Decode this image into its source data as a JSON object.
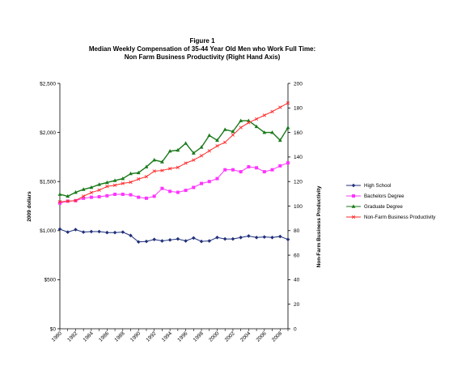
{
  "chart_data": {
    "type": "line",
    "title": [
      "Figure 1",
      "Median Weekly Compensation of 35-44 Year Old Men who Work Full Time:",
      "Non Farm Business Productivity (Right Hand Axis)"
    ],
    "ylabel": "2009 dollars",
    "y2label": "Non-Farm Business Productivity",
    "ylim": [
      0,
      2500
    ],
    "y2lim": [
      0,
      200
    ],
    "yticks": [
      "$0",
      "$500",
      "$1,000",
      "$1,500",
      "$2,000",
      "$2,500"
    ],
    "y2ticks": [
      "0",
      "20",
      "40",
      "60",
      "80",
      "100",
      "120",
      "140",
      "160",
      "180",
      "200"
    ],
    "xticks": [
      "1980",
      "1982",
      "1984",
      "1986",
      "1988",
      "1990",
      "1992",
      "1994",
      "1996",
      "1998",
      "2000",
      "2002",
      "2004",
      "2006",
      "2008"
    ],
    "x": [
      1980,
      1981,
      1982,
      1983,
      1984,
      1985,
      1986,
      1987,
      1988,
      1989,
      1990,
      1991,
      1992,
      1993,
      1994,
      1995,
      1996,
      1997,
      1998,
      1999,
      2000,
      2001,
      2002,
      2003,
      2004,
      2005,
      2006,
      2007,
      2008,
      2009
    ],
    "legend_position": "right",
    "series": [
      {
        "name": "High School",
        "axis": "left",
        "color": "#1f2f7a",
        "marker": "diamond",
        "values": [
          1015,
          985,
          1010,
          985,
          990,
          990,
          980,
          980,
          985,
          950,
          885,
          890,
          910,
          895,
          905,
          915,
          895,
          925,
          890,
          895,
          930,
          915,
          915,
          930,
          945,
          930,
          935,
          930,
          940,
          910
        ]
      },
      {
        "name": "Bachelors Degree",
        "axis": "left",
        "color": "#ff33ff",
        "marker": "square",
        "values": [
          1280,
          1300,
          1305,
          1330,
          1340,
          1345,
          1355,
          1370,
          1370,
          1365,
          1340,
          1330,
          1350,
          1430,
          1400,
          1390,
          1410,
          1440,
          1480,
          1500,
          1530,
          1620,
          1620,
          1600,
          1650,
          1640,
          1600,
          1620,
          1660,
          1690
        ]
      },
      {
        "name": "Graduate Degree",
        "axis": "left",
        "color": "#1a7a1a",
        "marker": "triangle",
        "values": [
          1370,
          1350,
          1390,
          1420,
          1440,
          1470,
          1490,
          1510,
          1530,
          1580,
          1590,
          1650,
          1720,
          1700,
          1810,
          1820,
          1890,
          1790,
          1850,
          1970,
          1920,
          2030,
          2010,
          2120,
          2120,
          2060,
          2000,
          2000,
          1920,
          2050
        ]
      },
      {
        "name": "Non-Farm Business Productivity",
        "axis": "right",
        "color": "#ff2a2a",
        "marker": "x",
        "values": [
          103.5,
          104.0,
          104.5,
          108,
          111,
          113,
          116,
          117,
          118.5,
          119.5,
          122,
          124,
          128.5,
          129,
          130.5,
          131.5,
          135,
          137.5,
          141,
          145,
          149,
          152,
          158,
          164,
          168,
          171,
          174,
          177,
          180.5,
          184
        ]
      }
    ]
  }
}
